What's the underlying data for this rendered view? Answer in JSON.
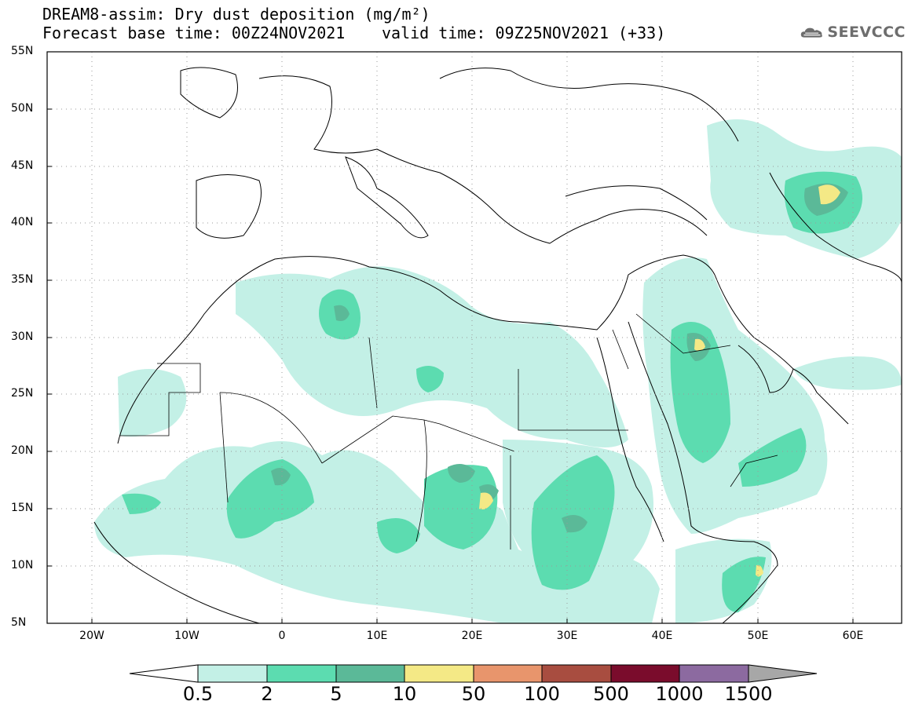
{
  "header": {
    "title_line1": "DREAM8-assim: Dry dust deposition (mg/m²)",
    "forecast_base": "Forecast base time: 00Z24NOV2021",
    "valid_time": "valid time: 09Z25NOV2021 (+33)",
    "logo_text": "SEEVCCC",
    "logo_icon": "cloud-icon"
  },
  "map": {
    "lat_labels": [
      "55N",
      "50N",
      "45N",
      "40N",
      "35N",
      "30N",
      "25N",
      "20N",
      "15N",
      "10N",
      "5N"
    ],
    "lon_labels": [
      "20W",
      "10W",
      "0",
      "10E",
      "20E",
      "30E",
      "40E",
      "50E",
      "60E"
    ],
    "grid": "dotted"
  },
  "colorbar": {
    "labels": [
      "0.5",
      "2",
      "5",
      "10",
      "50",
      "100",
      "500",
      "1000",
      "1500"
    ],
    "colors": [
      "#c3f0e6",
      "#5cdcb0",
      "#5bb998",
      "#f4e986",
      "#e8956c",
      "#a84d40",
      "#7a0c2c",
      "#8c6aa0",
      "#a7a7a7"
    ]
  }
}
